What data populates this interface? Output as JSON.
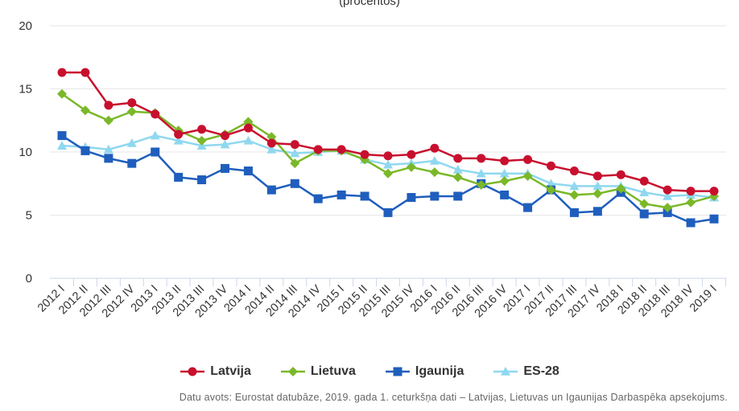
{
  "chart_data": {
    "type": "line",
    "subtitle": "(procentos)",
    "categories": [
      "2012 I",
      "2012 II",
      "2012 III",
      "2012 IV",
      "2013 I",
      "2013 II",
      "2013 III",
      "2013 IV",
      "2014 I",
      "2014 II",
      "2014 III",
      "2014 IV",
      "2015 I",
      "2015 II",
      "2015 III",
      "2015 IV",
      "2016 I",
      "2016 II",
      "2016 III",
      "2016 IV",
      "2017 I",
      "2017 II",
      "2017 III",
      "2017 IV",
      "2018 I",
      "2018 II",
      "2018 III",
      "2018 IV",
      "2019 I"
    ],
    "ylim": [
      0,
      20
    ],
    "yticks": [
      "0",
      "5",
      "10",
      "15",
      "20"
    ],
    "grid": true,
    "legend_position": "bottom",
    "series": [
      {
        "name": "Latvija",
        "color": "#c8102e",
        "marker": "circle",
        "values": [
          16.3,
          16.3,
          13.7,
          13.9,
          13.0,
          11.4,
          11.8,
          11.3,
          11.9,
          10.7,
          10.6,
          10.2,
          10.2,
          9.8,
          9.7,
          9.8,
          10.3,
          9.5,
          9.5,
          9.3,
          9.4,
          8.9,
          8.5,
          8.1,
          8.2,
          7.7,
          7.0,
          6.9,
          6.9
        ]
      },
      {
        "name": "Lietuva",
        "color": "#7ab829",
        "marker": "diamond",
        "values": [
          14.6,
          13.3,
          12.5,
          13.2,
          13.1,
          11.7,
          10.9,
          11.4,
          12.4,
          11.2,
          9.1,
          10.1,
          10.1,
          9.4,
          8.3,
          8.8,
          8.4,
          8.0,
          7.4,
          7.7,
          8.1,
          7.0,
          6.6,
          6.7,
          7.1,
          5.9,
          5.6,
          6.0,
          6.5
        ]
      },
      {
        "name": "Igaunija",
        "color": "#1f5ebd",
        "marker": "square",
        "values": [
          11.3,
          10.1,
          9.5,
          9.1,
          10.0,
          8.0,
          7.8,
          8.7,
          8.5,
          7.0,
          7.5,
          6.3,
          6.6,
          6.5,
          5.2,
          6.4,
          6.5,
          6.5,
          7.5,
          6.6,
          5.6,
          7.0,
          5.2,
          5.3,
          6.8,
          5.1,
          5.2,
          4.4,
          4.7
        ]
      },
      {
        "name": "ES-28",
        "color": "#8fd8ef",
        "marker": "triangle",
        "values": [
          10.5,
          10.4,
          10.2,
          10.7,
          11.3,
          10.9,
          10.5,
          10.6,
          10.9,
          10.2,
          9.9,
          10.0,
          10.1,
          9.4,
          9.0,
          9.1,
          9.3,
          8.6,
          8.3,
          8.3,
          8.3,
          7.5,
          7.3,
          7.3,
          7.3,
          6.8,
          6.5,
          6.6,
          6.4
        ]
      }
    ],
    "source": "Datu avots: Eurostat datubāze, 2019. gada 1. ceturkšņa dati – Latvijas, Lietuvas un Igaunijas Darbaspēka apsekojums."
  }
}
